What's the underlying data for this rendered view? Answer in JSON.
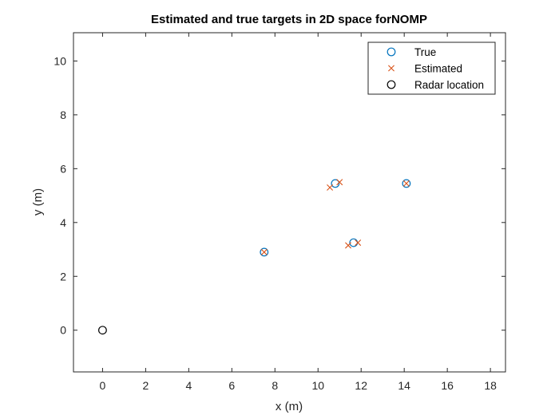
{
  "chart_data": {
    "type": "scatter",
    "title": "Estimated and true targets in 2D space forNOMP",
    "xlabel": "x (m)",
    "ylabel": "y (m)",
    "xlim": [
      -1.35,
      18.7
    ],
    "ylim": [
      -1.55,
      11.05
    ],
    "xticks": [
      0,
      2,
      4,
      6,
      8,
      10,
      12,
      14,
      16,
      18
    ],
    "yticks": [
      0,
      2,
      4,
      6,
      8,
      10
    ],
    "legend_position": "top-right",
    "grid": false,
    "series": [
      {
        "name": "True",
        "marker": "circle",
        "color": "#0072BD",
        "points": [
          [
            7.5,
            2.9
          ],
          [
            10.8,
            5.45
          ],
          [
            11.65,
            3.25
          ],
          [
            14.1,
            5.45
          ]
        ]
      },
      {
        "name": "Estimated",
        "marker": "x",
        "color": "#D95319",
        "points": [
          [
            7.5,
            2.9
          ],
          [
            10.55,
            5.3
          ],
          [
            11.0,
            5.5
          ],
          [
            11.4,
            3.15
          ],
          [
            11.85,
            3.25
          ],
          [
            14.1,
            5.45
          ]
        ]
      },
      {
        "name": "Radar location",
        "marker": "circle",
        "color": "#000000",
        "points": [
          [
            0,
            0
          ]
        ]
      }
    ]
  }
}
